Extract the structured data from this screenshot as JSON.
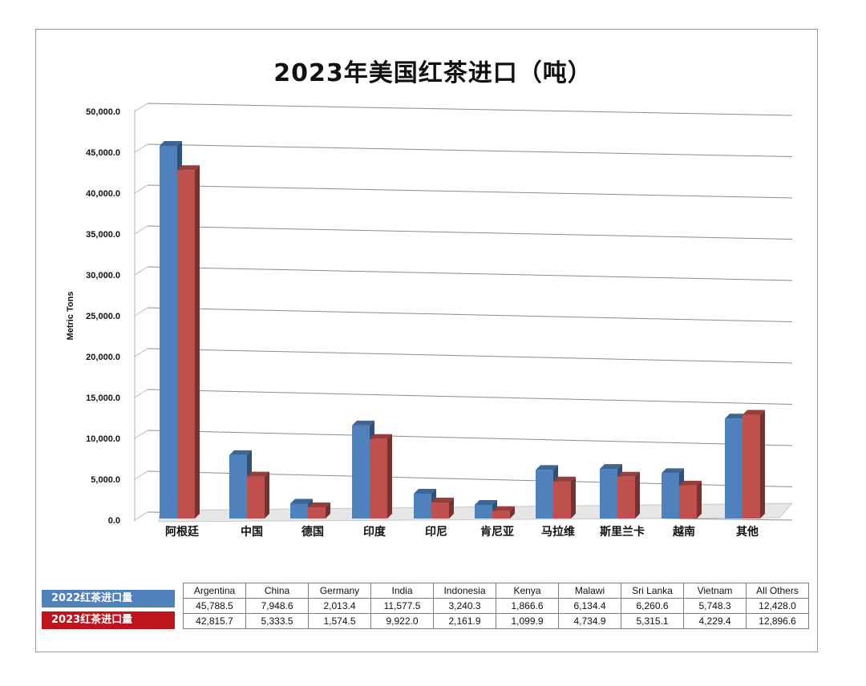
{
  "chart_data": {
    "type": "bar",
    "title": "2023年美国红茶进口（吨）",
    "ylabel": "Metric Tons",
    "xlabel": "",
    "ylim": [
      0,
      50000
    ],
    "yticks": [
      "0.0",
      "5,000.0",
      "10,000.0",
      "15,000.0",
      "20,000.0",
      "25,000.0",
      "30,000.0",
      "35,000.0",
      "40,000.0",
      "45,000.0",
      "50,000.0"
    ],
    "categories": [
      "阿根廷",
      "中国",
      "德国",
      "印度",
      "印尼",
      "肯尼亚",
      "马拉维",
      "斯里兰卡",
      "越南",
      "其他"
    ],
    "table_headers": [
      "Argentina",
      "China",
      "Germany",
      "India",
      "Indonesia",
      "Kenya",
      "Malawi",
      "Sri Lanka",
      "Vietnam",
      "All Others"
    ],
    "grid": true,
    "legend_position": "bottom-left",
    "series": [
      {
        "name": "2022红茶进口量",
        "color": "#4f81bd",
        "values": [
          45788.5,
          7948.6,
          2013.4,
          11577.5,
          3240.3,
          1866.6,
          6134.4,
          6260.6,
          5748.3,
          12428.0
        ],
        "labels": [
          "45,788.5",
          "7,948.6",
          "2,013.4",
          "11,577.5",
          "3,240.3",
          "1,866.6",
          "6,134.4",
          "6,260.6",
          "5,748.3",
          "12,428.0"
        ]
      },
      {
        "name": "2023红茶进口量",
        "color": "#c0504d",
        "values": [
          42815.7,
          5333.5,
          1574.5,
          9922.0,
          2161.9,
          1099.9,
          4734.9,
          5315.1,
          4229.4,
          12896.6
        ],
        "labels": [
          "42,815.7",
          "5,333.5",
          "1,574.5",
          "9,922.0",
          "2,161.9",
          "1,099.9",
          "4,734.9",
          "5,315.1",
          "4,229.4",
          "12,896.6"
        ]
      }
    ]
  },
  "colors": {
    "legend_2022_bg": "#4f81bd",
    "legend_2023_bg": "#c0141c"
  }
}
